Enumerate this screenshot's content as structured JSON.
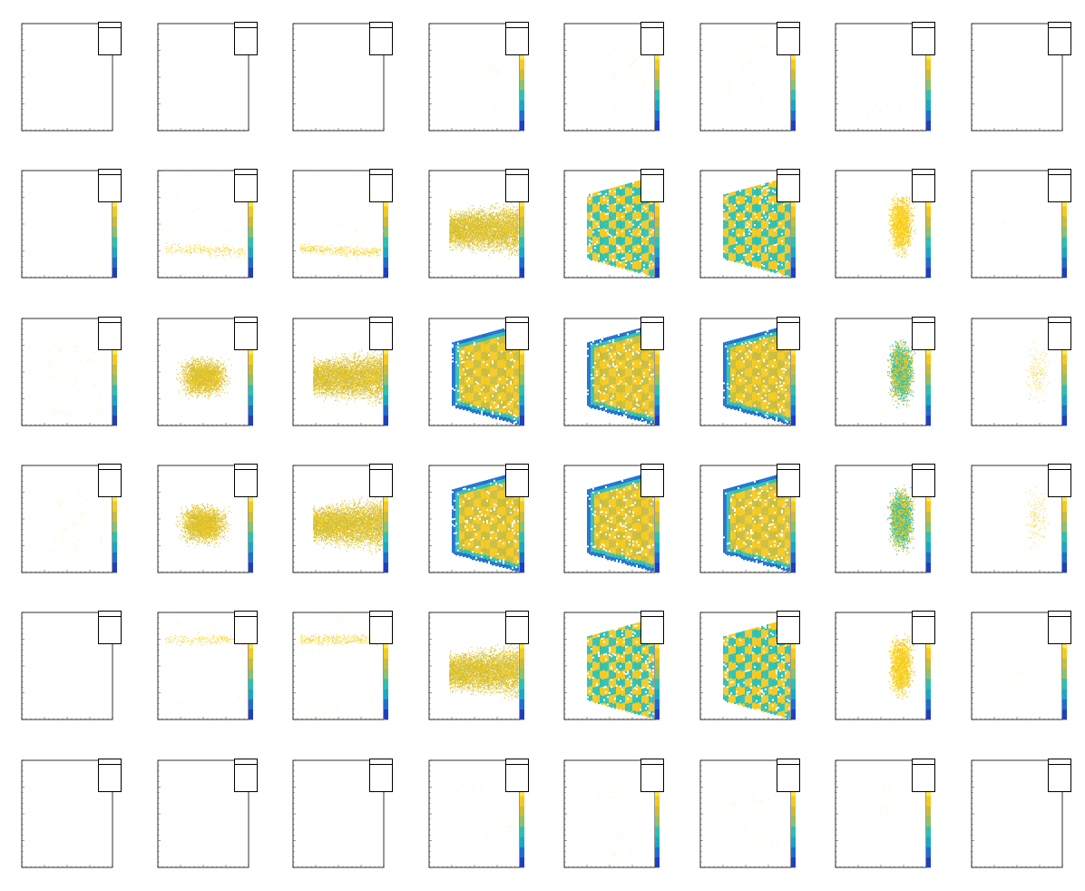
{
  "chart_data": {
    "type": "heatmap",
    "layout": {
      "rows": 6,
      "cols": 8
    },
    "title": "",
    "xlabel": "",
    "ylabel": "",
    "colormap": [
      "#1f3fbf",
      "#1d6fd0",
      "#1aa7c7",
      "#2fc0b0",
      "#8cc26b",
      "#c9bd3c",
      "#f5c920",
      "#ffe84a"
    ],
    "panels": [
      {
        "name": "",
        "intensity": 0.0,
        "shape": "none",
        "nstats": 5
      },
      {
        "name": "",
        "intensity": 0.0,
        "shape": "none",
        "nstats": 5
      },
      {
        "name": "",
        "intensity": 0.0,
        "shape": "none",
        "nstats": 5
      },
      {
        "name": "",
        "intensity": 0.02,
        "shape": "sparse",
        "nstats": 5
      },
      {
        "name": "",
        "intensity": 0.03,
        "shape": "sparse",
        "nstats": 5
      },
      {
        "name": "",
        "intensity": 0.03,
        "shape": "sparse",
        "nstats": 5
      },
      {
        "name": "",
        "intensity": 0.02,
        "shape": "sparse",
        "nstats": 5
      },
      {
        "name": "",
        "intensity": 0.0,
        "shape": "none",
        "nstats": 5
      },
      {
        "name": "",
        "intensity": 0.01,
        "shape": "sparse",
        "nstats": 5
      },
      {
        "name": "",
        "intensity": 0.12,
        "shape": "band",
        "nstats": 5
      },
      {
        "name": "",
        "intensity": 0.18,
        "shape": "band",
        "nstats": 5
      },
      {
        "name": "",
        "intensity": 0.55,
        "shape": "cloud",
        "nstats": 5
      },
      {
        "name": "",
        "intensity": 0.75,
        "shape": "fan",
        "nstats": 5
      },
      {
        "name": "",
        "intensity": 0.72,
        "shape": "fan",
        "nstats": 5
      },
      {
        "name": "",
        "intensity": 0.4,
        "shape": "column",
        "nstats": 5
      },
      {
        "name": "",
        "intensity": 0.01,
        "shape": "sparse",
        "nstats": 5
      },
      {
        "name": "",
        "intensity": 0.06,
        "shape": "sparse",
        "nstats": 5
      },
      {
        "name": "",
        "intensity": 0.35,
        "shape": "blob",
        "nstats": 5
      },
      {
        "name": "",
        "intensity": 0.55,
        "shape": "cloud",
        "nstats": 5
      },
      {
        "name": "",
        "intensity": 0.95,
        "shape": "fan",
        "nstats": 5
      },
      {
        "name": "",
        "intensity": 1.0,
        "shape": "fan",
        "nstats": 5
      },
      {
        "name": "",
        "intensity": 1.0,
        "shape": "fan",
        "nstats": 5
      },
      {
        "name": "",
        "intensity": 0.65,
        "shape": "column",
        "nstats": 5
      },
      {
        "name": "",
        "intensity": 0.05,
        "shape": "column",
        "nstats": 5
      },
      {
        "name": "",
        "intensity": 0.06,
        "shape": "sparse",
        "nstats": 5
      },
      {
        "name": "",
        "intensity": 0.35,
        "shape": "blob",
        "nstats": 5
      },
      {
        "name": "",
        "intensity": 0.55,
        "shape": "cloud",
        "nstats": 5
      },
      {
        "name": "",
        "intensity": 0.95,
        "shape": "fan",
        "nstats": 5
      },
      {
        "name": "",
        "intensity": 1.0,
        "shape": "fan",
        "nstats": 5
      },
      {
        "name": "",
        "intensity": 1.0,
        "shape": "fan",
        "nstats": 5
      },
      {
        "name": "",
        "intensity": 0.65,
        "shape": "column",
        "nstats": 5
      },
      {
        "name": "",
        "intensity": 0.05,
        "shape": "column",
        "nstats": 5
      },
      {
        "name": "",
        "intensity": 0.0,
        "shape": "none",
        "nstats": 5
      },
      {
        "name": "",
        "intensity": 0.1,
        "shape": "topband",
        "nstats": 5
      },
      {
        "name": "",
        "intensity": 0.18,
        "shape": "topband",
        "nstats": 5
      },
      {
        "name": "",
        "intensity": 0.55,
        "shape": "cloud",
        "nstats": 5
      },
      {
        "name": "",
        "intensity": 0.72,
        "shape": "fan",
        "nstats": 5
      },
      {
        "name": "",
        "intensity": 0.72,
        "shape": "fan",
        "nstats": 5
      },
      {
        "name": "",
        "intensity": 0.4,
        "shape": "column",
        "nstats": 5
      },
      {
        "name": "",
        "intensity": 0.01,
        "shape": "sparse",
        "nstats": 5
      },
      {
        "name": "",
        "intensity": 0.0,
        "shape": "none",
        "nstats": 5
      },
      {
        "name": "",
        "intensity": 0.0,
        "shape": "none",
        "nstats": 5
      },
      {
        "name": "",
        "intensity": 0.0,
        "shape": "none",
        "nstats": 5
      },
      {
        "name": "",
        "intensity": 0.02,
        "shape": "sparse",
        "nstats": 5
      },
      {
        "name": "",
        "intensity": 0.03,
        "shape": "sparse",
        "nstats": 5
      },
      {
        "name": "",
        "intensity": 0.04,
        "shape": "sparse",
        "nstats": 5
      },
      {
        "name": "",
        "intensity": 0.01,
        "shape": "sparse",
        "nstats": 5
      },
      {
        "name": "",
        "intensity": 0.0,
        "shape": "none",
        "nstats": 5
      }
    ]
  }
}
